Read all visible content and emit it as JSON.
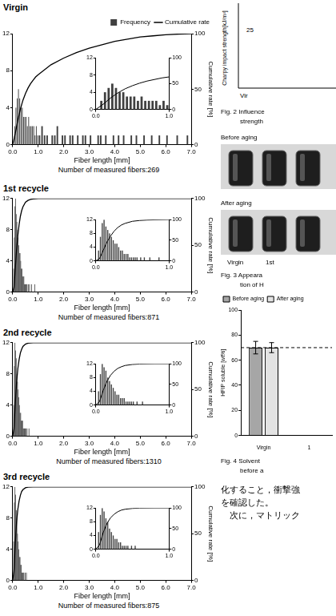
{
  "chart_data": [
    {
      "type": "histogram",
      "title": "Virgin",
      "name": "Frequency",
      "color": "#404040",
      "x_label": "Fiber length [mm]",
      "y2_label": "Cumulative rate [%]",
      "caption": "Number of measured fibers:269",
      "legend": "top",
      "bins": [
        0,
        0.05,
        0.1,
        0.15,
        0.2,
        0.25,
        0.3,
        0.35,
        0.4,
        0.45,
        0.5,
        0.55,
        0.6,
        0.65,
        0.7,
        0.75,
        0.8,
        0.85,
        0.9,
        0.95,
        1.0,
        1.1,
        1.2,
        1.3,
        1.4,
        1.5,
        1.6,
        1.7,
        1.8,
        1.9,
        2.0,
        2.1,
        2.2,
        2.3,
        2.4,
        2.5,
        2.6,
        2.7,
        2.8,
        2.9,
        3.0,
        3.1,
        3.2,
        3.3,
        3.4,
        3.5,
        3.6,
        3.7,
        3.8,
        3.9,
        4.0,
        4.1,
        4.2,
        4.3,
        4.4,
        4.5,
        4.6,
        4.7,
        4.8,
        4.9,
        5.0,
        5.1,
        5.2,
        5.3,
        5.4,
        5.5,
        5.6,
        5.7,
        5.8,
        5.9,
        6.0,
        6.1,
        6.2,
        6.3,
        6.4,
        6.5,
        6.6,
        6.7,
        6.8,
        6.9,
        7.0
      ],
      "counts": [
        0,
        2,
        4,
        5,
        6,
        5,
        4,
        4,
        3,
        3,
        3,
        2,
        3,
        2,
        2,
        2,
        2,
        1,
        2,
        1,
        1,
        2,
        1,
        1,
        0,
        1,
        1,
        2,
        0,
        1,
        1,
        0,
        1,
        1,
        0,
        1,
        0,
        1,
        1,
        0,
        1,
        0,
        0,
        1,
        1,
        0,
        1,
        0,
        0,
        1,
        0,
        1,
        0,
        1,
        0,
        0,
        1,
        0,
        1,
        0,
        0,
        1,
        0,
        0,
        1,
        0,
        0,
        1,
        0,
        0,
        1,
        0,
        0,
        0,
        1,
        0,
        0,
        0,
        1,
        0
      ],
      "series": [
        {
          "name": "Cumulative rate",
          "type": "line",
          "axis": "y2",
          "color": "#000000",
          "x": [
            0,
            0.1,
            0.2,
            0.3,
            0.4,
            0.5,
            0.6,
            0.7,
            0.8,
            0.9,
            1.0,
            1.5,
            2.0,
            2.5,
            3.0,
            3.5,
            4.0,
            4.5,
            5.0,
            5.5,
            6.0,
            6.5,
            7.0
          ],
          "values": [
            0,
            10,
            22,
            32,
            40,
            46,
            51,
            55,
            58,
            61,
            63,
            72,
            78,
            83,
            87,
            90,
            93,
            95,
            97,
            98,
            99,
            99.6,
            100
          ]
        }
      ],
      "xlim": [
        0,
        7
      ],
      "xticks": [
        {
          "value": 0,
          "label": "0.0"
        },
        {
          "value": 1,
          "label": "1.0"
        },
        {
          "value": 2,
          "label": "2.0"
        },
        {
          "value": 3,
          "label": "3.0"
        },
        {
          "value": 4,
          "label": "4.0"
        },
        {
          "value": 5,
          "label": "5.0"
        },
        {
          "value": 6,
          "label": "6.0"
        },
        {
          "value": 7,
          "label": "7.0"
        }
      ],
      "ylim": [
        0,
        12
      ],
      "yticks": [
        0,
        4,
        8,
        12
      ],
      "y2lim": [
        0,
        100
      ],
      "y2ticks": [
        0,
        50,
        100
      ],
      "grid": false,
      "inset": {
        "xlim": [
          0,
          1
        ],
        "xticks": [
          {
            "value": 0,
            "label": "0.0"
          },
          {
            "value": 1,
            "label": "1.0"
          }
        ],
        "ylim": [
          0,
          12
        ],
        "yticks": [
          0,
          4,
          8,
          12
        ],
        "y2lim": [
          0,
          100
        ],
        "y2ticks": [
          0,
          50,
          100
        ]
      }
    },
    {
      "type": "histogram",
      "title": "1st recycle",
      "color": "#404040",
      "x_label": "Fiber length [mm]",
      "y2_label": "Cumulative rate [%]",
      "caption": "Number of measured fibers:871",
      "bins": [
        0,
        0.025,
        0.05,
        0.075,
        0.1,
        0.125,
        0.15,
        0.175,
        0.2,
        0.225,
        0.25,
        0.275,
        0.3,
        0.325,
        0.35,
        0.375,
        0.4,
        0.425,
        0.45,
        0.475,
        0.5,
        0.525,
        0.55,
        0.575,
        0.6,
        0.625,
        0.65,
        0.675,
        0.7,
        0.725,
        0.75,
        0.775,
        0.8,
        0.825,
        0.85,
        0.875,
        0.9,
        0.925,
        0.95,
        0.975,
        1.0
      ],
      "counts": [
        0,
        3,
        7,
        11,
        12,
        10,
        9,
        8,
        7,
        6,
        5,
        5,
        4,
        3,
        3,
        2,
        2,
        2,
        1,
        1,
        1,
        1,
        1,
        0,
        1,
        0,
        1,
        0,
        0,
        1,
        0,
        0,
        0,
        0,
        1,
        0,
        0,
        0,
        0,
        0
      ],
      "series": [
        {
          "type": "line",
          "axis": "y2",
          "color": "#000000",
          "x": [
            0,
            0.05,
            0.1,
            0.15,
            0.2,
            0.25,
            0.3,
            0.35,
            0.4,
            0.5,
            0.6,
            0.7,
            0.8,
            1.0,
            7.0
          ],
          "values": [
            0,
            5,
            25,
            45,
            60,
            72,
            81,
            87,
            91,
            96,
            98,
            99,
            99.5,
            100,
            100
          ]
        }
      ],
      "xlim": [
        0,
        7
      ],
      "xticks": [
        {
          "value": 0,
          "label": "0.0"
        },
        {
          "value": 1,
          "label": "1.0"
        },
        {
          "value": 2,
          "label": "2.0"
        },
        {
          "value": 3,
          "label": "3.0"
        },
        {
          "value": 4,
          "label": "4.0"
        },
        {
          "value": 5,
          "label": "5.0"
        },
        {
          "value": 6,
          "label": "6.0"
        },
        {
          "value": 7,
          "label": "7.0"
        }
      ],
      "ylim": [
        0,
        12
      ],
      "yticks": [
        0,
        4,
        8,
        12
      ],
      "y2lim": [
        0,
        100
      ],
      "y2ticks": [
        0,
        50,
        100
      ],
      "grid": false,
      "inset": {
        "xlim": [
          0,
          1
        ],
        "xticks": [
          {
            "value": 0,
            "label": "0.0"
          },
          {
            "value": 1,
            "label": "1.0"
          }
        ],
        "ylim": [
          0,
          12
        ],
        "yticks": [
          0,
          4,
          8,
          12
        ],
        "y2lim": [
          0,
          100
        ],
        "y2ticks": [
          0,
          50,
          100
        ]
      }
    },
    {
      "type": "histogram",
      "title": "2nd recycle",
      "color": "#404040",
      "x_label": "Fiber length [mm]",
      "y2_label": "Cumulative rate [%]",
      "caption": "Number of measured fibers:1310",
      "bins": [
        0,
        0.025,
        0.05,
        0.075,
        0.1,
        0.125,
        0.15,
        0.175,
        0.2,
        0.225,
        0.25,
        0.275,
        0.3,
        0.325,
        0.35,
        0.375,
        0.4,
        0.425,
        0.45,
        0.475,
        0.5,
        0.525,
        0.55,
        0.575,
        0.6,
        0.625,
        0.65,
        0.675,
        0.7,
        0.725,
        0.75,
        0.775,
        0.8,
        0.825,
        0.85,
        0.875,
        0.9,
        0.925,
        0.95,
        0.975,
        1.0
      ],
      "counts": [
        0,
        4,
        9,
        12,
        11,
        10,
        8,
        7,
        6,
        5,
        4,
        3,
        3,
        2,
        2,
        2,
        1,
        1,
        1,
        1,
        1,
        0,
        1,
        0,
        0,
        1,
        0,
        0,
        0,
        0,
        0,
        0,
        0,
        0,
        0,
        0,
        0,
        0,
        0,
        0
      ],
      "series": [
        {
          "type": "line",
          "axis": "y2",
          "color": "#000000",
          "x": [
            0,
            0.05,
            0.1,
            0.15,
            0.2,
            0.25,
            0.3,
            0.35,
            0.4,
            0.5,
            0.6,
            0.8,
            7.0
          ],
          "values": [
            0,
            8,
            35,
            57,
            72,
            82,
            89,
            93,
            96,
            98.5,
            99.5,
            100,
            100
          ]
        }
      ],
      "xlim": [
        0,
        7
      ],
      "xticks": [
        {
          "value": 0,
          "label": "0.0"
        },
        {
          "value": 1,
          "label": "1.0"
        },
        {
          "value": 2,
          "label": "2.0"
        },
        {
          "value": 3,
          "label": "3.0"
        },
        {
          "value": 4,
          "label": "4.0"
        },
        {
          "value": 5,
          "label": "5.0"
        },
        {
          "value": 6,
          "label": "6.0"
        },
        {
          "value": 7,
          "label": "7.0"
        }
      ],
      "ylim": [
        0,
        12
      ],
      "yticks": [
        0,
        4,
        8,
        12
      ],
      "y2lim": [
        0,
        100
      ],
      "y2ticks": [
        0,
        50,
        100
      ],
      "grid": false,
      "inset": {
        "xlim": [
          0,
          1
        ],
        "xticks": [
          {
            "value": 0,
            "label": "0.0"
          },
          {
            "value": 1,
            "label": "1.0"
          }
        ],
        "ylim": [
          0,
          12
        ],
        "yticks": [
          0,
          4,
          8,
          12
        ],
        "y2lim": [
          0,
          100
        ],
        "y2ticks": [
          0,
          50,
          100
        ]
      }
    },
    {
      "type": "histogram",
      "title": "3rd recycle",
      "color": "#404040",
      "x_label": "Fiber length [mm]",
      "y2_label": "Cumulative rate [%]",
      "caption": "Number of measured fibers:875",
      "bins": [
        0,
        0.025,
        0.05,
        0.075,
        0.1,
        0.125,
        0.15,
        0.175,
        0.2,
        0.225,
        0.25,
        0.275,
        0.3,
        0.325,
        0.35,
        0.375,
        0.4,
        0.425,
        0.45,
        0.475,
        0.5,
        0.525,
        0.55,
        0.575,
        0.6,
        0.625,
        0.65,
        0.675,
        0.7,
        0.725,
        0.75,
        0.775,
        0.8,
        0.825,
        0.85,
        0.875,
        0.9,
        0.925,
        0.95,
        0.975,
        1.0
      ],
      "counts": [
        0,
        5,
        10,
        12,
        11,
        9,
        8,
        6,
        5,
        4,
        3,
        3,
        2,
        2,
        1,
        1,
        1,
        1,
        0,
        1,
        0,
        1,
        0,
        0,
        0,
        0,
        0,
        0,
        0,
        0,
        0,
        0,
        0,
        0,
        0,
        0,
        0,
        0,
        0,
        0
      ],
      "series": [
        {
          "type": "line",
          "axis": "y2",
          "color": "#000000",
          "x": [
            0,
            0.05,
            0.1,
            0.15,
            0.2,
            0.25,
            0.3,
            0.35,
            0.4,
            0.5,
            0.6,
            0.8,
            7.0
          ],
          "values": [
            0,
            10,
            40,
            62,
            76,
            85,
            91,
            95,
            97,
            99,
            99.7,
            100,
            100
          ]
        }
      ],
      "xlim": [
        0,
        7
      ],
      "xticks": [
        {
          "value": 0,
          "label": "0.0"
        },
        {
          "value": 1,
          "label": "1.0"
        },
        {
          "value": 2,
          "label": "2.0"
        },
        {
          "value": 3,
          "label": "3.0"
        },
        {
          "value": 4,
          "label": "4.0"
        },
        {
          "value": 5,
          "label": "5.0"
        },
        {
          "value": 6,
          "label": "6.0"
        },
        {
          "value": 7,
          "label": "7.0"
        }
      ],
      "ylim": [
        0,
        12
      ],
      "yticks": [
        0,
        4,
        8,
        12
      ],
      "y2lim": [
        0,
        100
      ],
      "y2ticks": [
        0,
        50,
        100
      ],
      "grid": false,
      "inset": {
        "xlim": [
          0,
          1
        ],
        "xticks": [
          {
            "value": 0,
            "label": "0.0"
          },
          {
            "value": 1,
            "label": "1.0"
          }
        ],
        "ylim": [
          0,
          12
        ],
        "yticks": [
          0,
          4,
          8,
          12
        ],
        "y2lim": [
          0,
          100
        ],
        "y2ticks": [
          0,
          50,
          100
        ]
      }
    },
    {
      "type": "bar",
      "y_label": "HFIP soluble [wt%]",
      "categories": [
        "Virgin",
        "1"
      ],
      "series": [
        {
          "name": "Before aging",
          "color": "#a6a6a6",
          "values": [
            70,
            null
          ],
          "errors": [
            5,
            null
          ]
        },
        {
          "name": "After aging",
          "color": "#e3e3e3",
          "values": [
            70,
            null
          ],
          "errors": [
            4,
            null
          ]
        }
      ],
      "ylim": [
        0,
        100
      ],
      "yticks": [
        0,
        20,
        40,
        60,
        80,
        100
      ],
      "grid": false,
      "legend": "top",
      "reference_line": {
        "value": 70,
        "line_style": "dashed"
      },
      "caption": [
        "Fig. 4  Solvent",
        "before a"
      ]
    }
  ],
  "fragments": {
    "fig2": {
      "y_label": "Charpy impact strength[kJ/m²]",
      "texts": [
        "25",
        "Vir"
      ],
      "caption": [
        "Fig. 2  Influence",
        "strength"
      ]
    },
    "fig3": {
      "before": "Before aging",
      "after": "After aging",
      "labels": [
        "Virgin",
        "1st"
      ],
      "caption": [
        "Fig. 3  Appeara",
        "tion of H"
      ]
    },
    "body_text": [
      "化すること，衝撃強",
      "を確認した。",
      "　次に，マトリック"
    ]
  }
}
